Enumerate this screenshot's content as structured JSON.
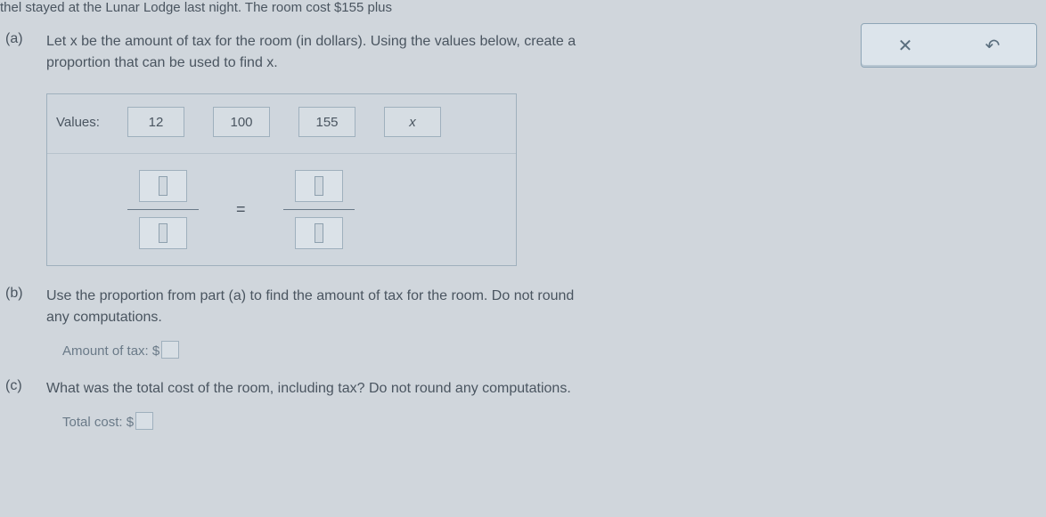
{
  "top_text": "thel stayed at the Lunar Lodge last night. The room cost $155 plus",
  "toolbar": {
    "close_label": "✕",
    "reset_label": "↶"
  },
  "parts": {
    "a": {
      "label": "(a)",
      "text_line1": "Let x be the amount of tax for the room (in dollars). Using the values below, create a",
      "text_line2": "proportion that can be used to find x.",
      "values_label": "Values:",
      "values": [
        "12",
        "100",
        "155",
        "x"
      ],
      "equals": "="
    },
    "b": {
      "label": "(b)",
      "text_line1": "Use the proportion from part (a) to find the amount of tax for the room. Do not round",
      "text_line2": "any computations.",
      "amount_label": "Amount of tax: $"
    },
    "c": {
      "label": "(c)",
      "text": "What was the total cost of the room, including tax? Do not round any computations.",
      "total_label": "Total cost: $"
    }
  },
  "colors": {
    "background": "#d0d6dc",
    "text": "#4a5560",
    "faded_text": "#7a8894",
    "border": "#9fb0bd",
    "toolbar_border": "#8ea5b6",
    "toolbar_bg": "#dce4eb"
  }
}
